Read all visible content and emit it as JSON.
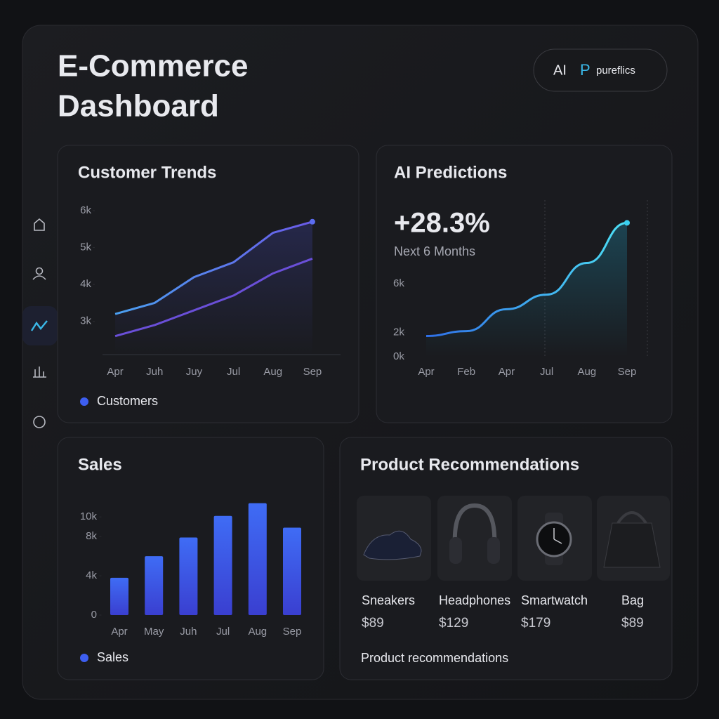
{
  "header": {
    "title_lines": [
      "E-Commerce",
      "Dashboard"
    ],
    "badge": {
      "ai": "AI",
      "logo": "P",
      "brand": "pureflics"
    }
  },
  "chart_data": [
    {
      "type": "line",
      "title": "Customer Trends",
      "categories": [
        "Apr",
        "Juh",
        "Juy",
        "Jul",
        "Aug",
        "Sep"
      ],
      "series": [
        {
          "name": "Customers",
          "color": "#5b6cf0",
          "values": [
            3200,
            3500,
            4200,
            4600,
            5400,
            5700
          ]
        },
        {
          "color": "#6a4fd8",
          "values": [
            2600,
            2900,
            3300,
            3700,
            4300,
            4700
          ]
        }
      ],
      "ylim": [
        2100,
        6000
      ],
      "yticks": [
        {
          "value": 3000,
          "label": "3k"
        },
        {
          "value": 4000,
          "label": "4k"
        },
        {
          "value": 5000,
          "label": "5k"
        },
        {
          "value": 6000,
          "label": "6k"
        }
      ]
    },
    {
      "type": "line",
      "title": "AI Predictions",
      "headline": "+28.3%",
      "subtitle": "Next 6 Months",
      "categories": [
        "Apr",
        "Feb",
        "Apr",
        "Jul",
        "Aug",
        "Sep"
      ],
      "series": [
        {
          "color": "#3ad0f0",
          "values": [
            1700,
            2100,
            3900,
            5100,
            7700,
            11000
          ]
        }
      ],
      "ylim": [
        0,
        12000
      ],
      "yticks": [
        {
          "value": 0,
          "label": "0k"
        },
        {
          "value": 2000,
          "label": "2k"
        },
        {
          "value": 6000,
          "label": "6k"
        }
      ]
    },
    {
      "type": "bar",
      "title": "Sales",
      "categories": [
        "Apr",
        "May",
        "Juh",
        "Jul",
        "Aug",
        "Sep"
      ],
      "series": [
        {
          "name": "Sales",
          "color": "#3d5ef0",
          "values": [
            3800,
            6000,
            7900,
            10100,
            11400,
            8900
          ]
        }
      ],
      "ylim": [
        0,
        12300
      ],
      "yticks": [
        0,
        {
          "value": 4000,
          "label": "4k"
        },
        {
          "value": 8000,
          "label": "8k"
        },
        {
          "value": 10000,
          "label": "10k"
        }
      ]
    }
  ],
  "products": {
    "title": "Product Recommendations",
    "items": [
      {
        "name": "Sneakers",
        "price": "$89"
      },
      {
        "name": "Headphones",
        "price": "$129"
      },
      {
        "name": "Smartwatch",
        "price": "$179"
      },
      {
        "name": "Bag",
        "price": "$89"
      }
    ],
    "footer": "Product recommendations"
  }
}
